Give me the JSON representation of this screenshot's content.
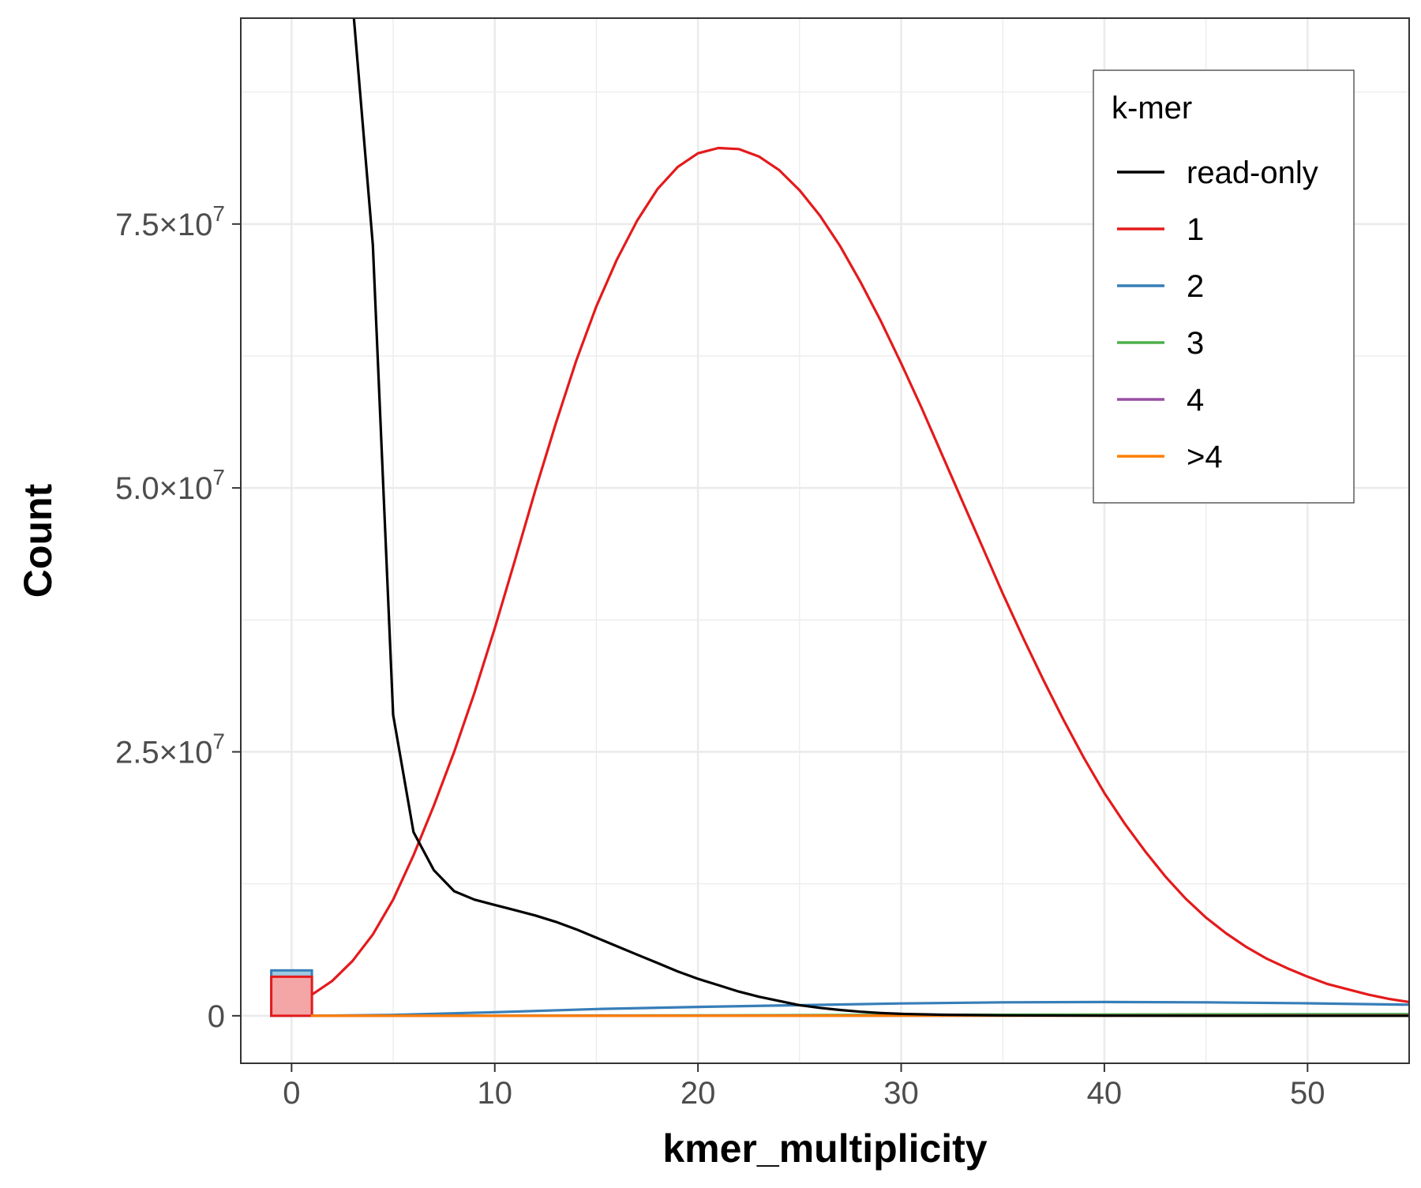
{
  "chart_data": {
    "type": "line",
    "title": "",
    "xlabel": "kmer_multiplicity",
    "ylabel": "Count",
    "xlim": [
      -2.5,
      55
    ],
    "ylim": [
      -4500000,
      94500000
    ],
    "x_ticks": [
      0,
      10,
      20,
      30,
      40,
      50
    ],
    "x_tick_labels": [
      "0",
      "10",
      "20",
      "30",
      "40",
      "50"
    ],
    "y_ticks": [
      0,
      25000000,
      50000000,
      75000000
    ],
    "y_tick_labels": [
      {
        "mantissa": "0",
        "exponent": ""
      },
      {
        "mantissa": "2.5",
        "exponent": "7"
      },
      {
        "mantissa": "5.0",
        "exponent": "7"
      },
      {
        "mantissa": "7.5",
        "exponent": "7"
      }
    ],
    "grid": true,
    "legend": {
      "title": "k-mer",
      "position": "top-right",
      "entries": [
        {
          "label": "read-only",
          "color": "#000000"
        },
        {
          "label": "1",
          "color": "#e41a1c"
        },
        {
          "label": "2",
          "color": "#377eb8"
        },
        {
          "label": "3",
          "color": "#4daf4a"
        },
        {
          "label": "4",
          "color": "#984ea3"
        },
        {
          "label": ">4",
          "color": "#ff7f00"
        }
      ]
    },
    "series": [
      {
        "name": "read-only",
        "color": "#000000",
        "x": [
          3,
          4,
          5,
          6,
          7,
          8,
          9,
          10,
          11,
          12,
          13,
          14,
          15,
          16,
          17,
          18,
          19,
          20,
          21,
          22,
          23,
          24,
          25,
          26,
          27,
          28,
          29,
          30,
          32,
          35,
          40,
          45,
          50,
          55
        ],
        "y": [
          96000000,
          73000000,
          28500000,
          17400000,
          13800000,
          11800000,
          11000000,
          10500000,
          10000000,
          9500000,
          8900000,
          8200000,
          7400000,
          6600000,
          5800000,
          5000000,
          4200000,
          3500000,
          2900000,
          2300000,
          1800000,
          1400000,
          1000000,
          750000,
          550000,
          380000,
          260000,
          180000,
          100000,
          40000,
          10000,
          3000,
          1000,
          500
        ]
      },
      {
        "name": "1",
        "color": "#e41a1c",
        "x": [
          1,
          2,
          3,
          4,
          5,
          6,
          7,
          8,
          9,
          10,
          11,
          12,
          13,
          14,
          15,
          16,
          17,
          18,
          19,
          20,
          21,
          22,
          23,
          24,
          25,
          26,
          27,
          28,
          29,
          30,
          31,
          32,
          33,
          34,
          35,
          36,
          37,
          38,
          39,
          40,
          41,
          42,
          43,
          44,
          45,
          46,
          47,
          48,
          49,
          50,
          51,
          52,
          53,
          54,
          55
        ],
        "y": [
          2000000,
          3300000,
          5200000,
          7700000,
          11000000,
          15200000,
          19900000,
          25000000,
          30600000,
          36700000,
          43200000,
          49800000,
          56100000,
          62000000,
          67200000,
          71600000,
          75300000,
          78300000,
          80400000,
          81700000,
          82200000,
          82100000,
          81400000,
          80100000,
          78200000,
          75800000,
          72900000,
          69500000,
          65800000,
          61800000,
          57600000,
          53200000,
          48800000,
          44400000,
          40000000,
          35800000,
          31800000,
          28000000,
          24400000,
          21100000,
          18200000,
          15600000,
          13200000,
          11100000,
          9300000,
          7800000,
          6500000,
          5400000,
          4500000,
          3700000,
          3000000,
          2500000,
          2000000,
          1600000,
          1300000
        ]
      },
      {
        "name": "2",
        "color": "#377eb8",
        "x": [
          1,
          5,
          10,
          15,
          20,
          25,
          30,
          35,
          40,
          45,
          50,
          55
        ],
        "y": [
          0,
          80000,
          340000,
          640000,
          840000,
          1000000,
          1170000,
          1270000,
          1300000,
          1270000,
          1180000,
          1050000
        ]
      },
      {
        "name": "3",
        "color": "#4daf4a",
        "x": [
          1,
          10,
          20,
          30,
          40,
          50,
          55
        ],
        "y": [
          0,
          10000,
          40000,
          80000,
          120000,
          150000,
          160000
        ]
      },
      {
        "name": "4",
        "color": "#984ea3",
        "x": [
          1,
          10,
          20,
          30,
          40,
          50,
          55
        ],
        "y": [
          0,
          2000,
          8000,
          15000,
          25000,
          30000,
          32000
        ]
      },
      {
        "name": ">4",
        "color": "#ff7f00",
        "x": [
          1,
          10,
          20,
          30,
          40,
          50,
          55
        ],
        "y": [
          0,
          1000,
          3000,
          6000,
          10000,
          12000,
          13000
        ]
      }
    ],
    "bars_at_zero": [
      {
        "series": "2",
        "x": 0,
        "y": 4300000,
        "color": "#377eb8",
        "fill": "#9ecae1"
      },
      {
        "series": "1",
        "x": 0,
        "y": 3700000,
        "color": "#e41a1c",
        "fill": "#f4a6a7"
      }
    ]
  }
}
